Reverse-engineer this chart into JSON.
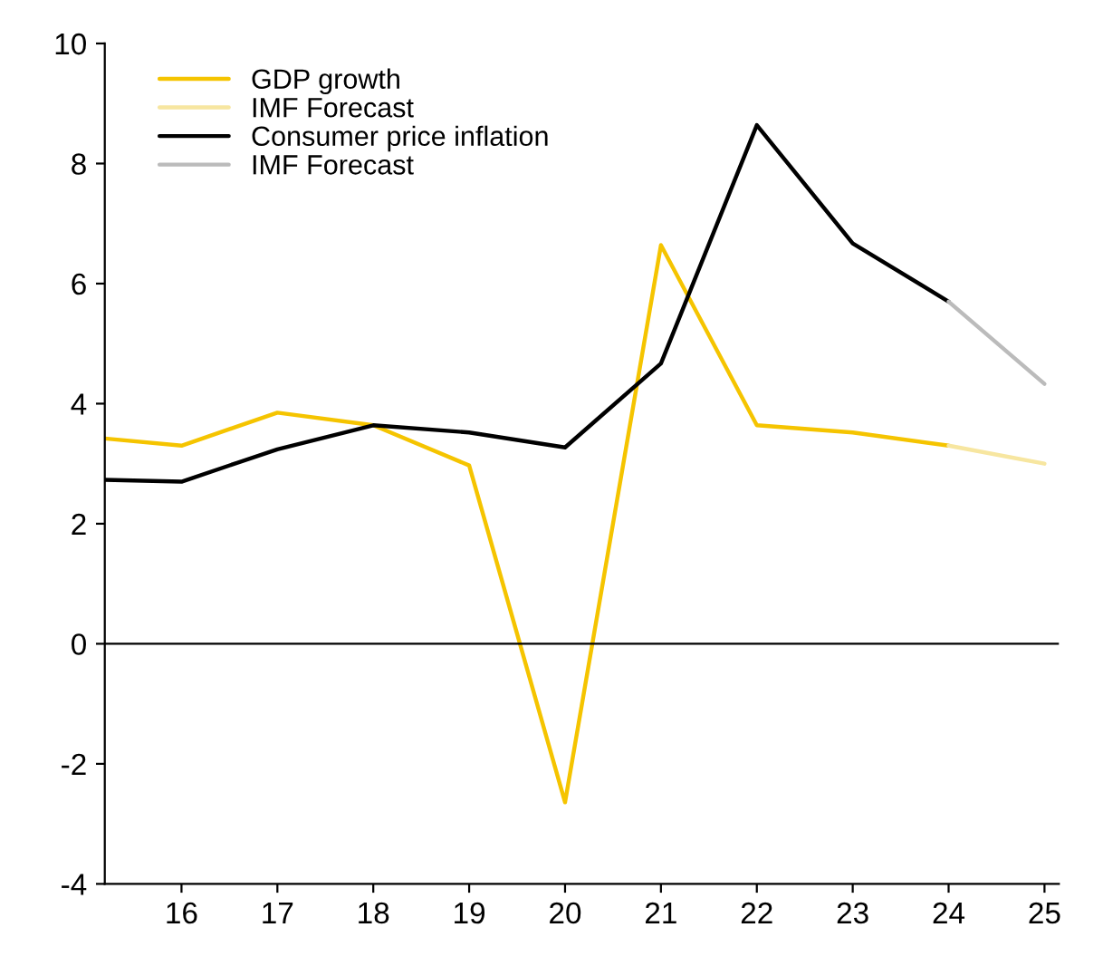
{
  "chart_data": {
    "type": "line",
    "x": [
      15.2,
      16,
      17,
      18,
      19,
      20,
      21,
      22,
      23,
      24,
      25
    ],
    "series": [
      {
        "name": "GDP growth",
        "color": "#f5c400",
        "values": [
          3.42,
          3.3,
          3.85,
          3.64,
          2.97,
          -2.64,
          6.64,
          3.64,
          3.52,
          3.3,
          null
        ]
      },
      {
        "name": "IMF Forecast",
        "color": "#f7e6a0",
        "values": [
          null,
          null,
          null,
          null,
          null,
          null,
          null,
          null,
          null,
          3.3,
          3.0
        ]
      },
      {
        "name": "Consumer price inflation",
        "color": "#000000",
        "values": [
          2.73,
          2.7,
          3.24,
          3.64,
          3.52,
          3.27,
          4.67,
          8.64,
          6.67,
          5.7,
          null
        ]
      },
      {
        "name": "IMF Forecast",
        "color": "#bbbbbb",
        "values": [
          null,
          null,
          null,
          null,
          null,
          null,
          null,
          null,
          null,
          5.7,
          4.33
        ]
      }
    ],
    "xlim": [
      15.2,
      25.15
    ],
    "xticks": [
      16,
      17,
      18,
      19,
      20,
      21,
      22,
      23,
      24,
      25
    ],
    "ylim": [
      -4,
      10
    ],
    "yticks": [
      -4,
      -2,
      0,
      2,
      4,
      6,
      8,
      10
    ],
    "ref_lines": [
      {
        "axis": "y",
        "value": 0,
        "label": null,
        "color": "#000000"
      }
    ],
    "grid": false,
    "legend": "top left",
    "marker": "none",
    "line_style": "solid"
  }
}
